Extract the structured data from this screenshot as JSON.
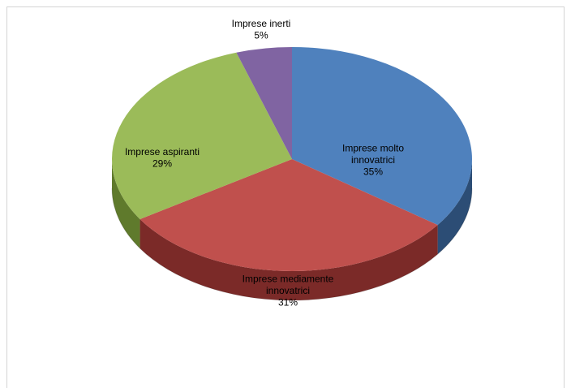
{
  "chart_data": {
    "type": "pie",
    "title": "",
    "slices": [
      {
        "label_lines": [
          "Imprese molto",
          "innovatrici"
        ],
        "value": 35,
        "value_label": "35%",
        "color": "#4f81bd",
        "side_color": "#2c4d75"
      },
      {
        "label_lines": [
          "Imprese mediamente",
          "innovatrici"
        ],
        "value": 31,
        "value_label": "31%",
        "color": "#c0504d",
        "side_color": "#7b2a28"
      },
      {
        "label_lines": [
          "Imprese aspiranti"
        ],
        "value": 29,
        "value_label": "29%",
        "color": "#9bbb59",
        "side_color": "#5f7a2c"
      },
      {
        "label_lines": [
          "Imprese inerti"
        ],
        "value": 5,
        "value_label": "5%",
        "color": "#8064a2",
        "side_color": "#4d3b66"
      }
    ],
    "start_angle_deg": 0,
    "direction": "clockwise",
    "style": "3d-tilted",
    "legend": "none"
  }
}
